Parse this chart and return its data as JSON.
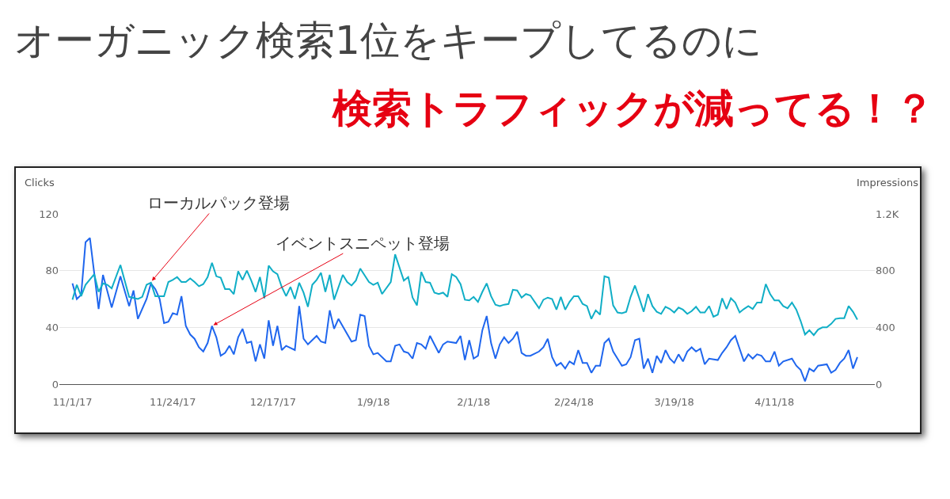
{
  "chart_data": {
    "type": "line",
    "title": "オーガニック検索1位をキープしてるのに",
    "subtitle": "検索トラフィックが減ってる！？",
    "ylabel": "Clicks",
    "y2label": "Impressions",
    "annotations": [
      {
        "text": "ローカルパック登場",
        "x": "2017-11-19",
        "y": 72
      },
      {
        "text": "イベントスニペット登場",
        "x": "2017-12-03",
        "y": 41
      }
    ],
    "xlim": [
      "2017-10-29",
      "2018-05-04"
    ],
    "xticks": [
      {
        "value": "2017-11-01",
        "label": "11/1/17"
      },
      {
        "value": "2017-11-24",
        "label": "11/24/17"
      },
      {
        "value": "2017-12-17",
        "label": "12/17/17"
      },
      {
        "value": "2018-01-09",
        "label": "1/9/18"
      },
      {
        "value": "2018-02-01",
        "label": "2/1/18"
      },
      {
        "value": "2018-02-24",
        "label": "2/24/18"
      },
      {
        "value": "2018-03-19",
        "label": "3/19/18"
      },
      {
        "value": "2018-04-11",
        "label": "4/11/18"
      }
    ],
    "ylim": [
      0,
      120
    ],
    "yticks": [
      0,
      40,
      80,
      120
    ],
    "y2lim": [
      0,
      1200
    ],
    "y2ticks": [
      0,
      400,
      800,
      {
        "value": 1200,
        "label": "1.2K"
      }
    ],
    "grid": "y",
    "marker": "none",
    "line_style": "solid",
    "series": [
      {
        "color": "#10aec6",
        "axis": "y2",
        "x": [
          "2017-11-01",
          "2017-11-02",
          "2017-11-03",
          "2017-11-04",
          "2017-11-06",
          "2017-11-07",
          "2017-11-08",
          "2017-11-09",
          "2017-11-10",
          "2017-11-12",
          "2017-11-14",
          "2017-11-16",
          "2017-11-17",
          "2017-11-18",
          "2017-11-19",
          "2017-11-20",
          "2017-11-22",
          "2017-11-23",
          "2017-11-24",
          "2017-11-25",
          "2017-11-26",
          "2017-11-27",
          "2017-11-28",
          "2017-11-29",
          "2017-11-30",
          "2017-12-01",
          "2017-12-02",
          "2017-12-03",
          "2017-12-04",
          "2017-12-05",
          "2017-12-06",
          "2017-12-07",
          "2017-12-08",
          "2017-12-09",
          "2017-12-10",
          "2017-12-11",
          "2017-12-12",
          "2017-12-13",
          "2017-12-14",
          "2017-12-15",
          "2017-12-16",
          "2017-12-17",
          "2017-12-18",
          "2017-12-19",
          "2017-12-20",
          "2017-12-21",
          "2017-12-22",
          "2017-12-23",
          "2017-12-24",
          "2017-12-25",
          "2017-12-26",
          "2017-12-27",
          "2017-12-28",
          "2017-12-29",
          "2017-12-30",
          "2017-12-31",
          "2018-01-02",
          "2018-01-03",
          "2018-01-04",
          "2018-01-05",
          "2018-01-06",
          "2018-01-08",
          "2018-01-09",
          "2018-01-10",
          "2018-01-11",
          "2018-01-13",
          "2018-01-14",
          "2018-01-16",
          "2018-01-17",
          "2018-01-18",
          "2018-01-19",
          "2018-01-20",
          "2018-01-21",
          "2018-01-22",
          "2018-01-23",
          "2018-01-24",
          "2018-01-25",
          "2018-01-26",
          "2018-01-27",
          "2018-01-28",
          "2018-01-29",
          "2018-01-30",
          "2018-01-31",
          "2018-02-01",
          "2018-02-02",
          "2018-02-03",
          "2018-02-04",
          "2018-02-05",
          "2018-02-06",
          "2018-02-07",
          "2018-02-08",
          "2018-02-09",
          "2018-02-10",
          "2018-02-11",
          "2018-02-12",
          "2018-02-13",
          "2018-02-14",
          "2018-02-15",
          "2018-02-16",
          "2018-02-17",
          "2018-02-18",
          "2018-02-19",
          "2018-02-20",
          "2018-02-21",
          "2018-02-22",
          "2018-02-23",
          "2018-02-24",
          "2018-02-25",
          "2018-02-26",
          "2018-02-27",
          "2018-02-28",
          "2018-03-01",
          "2018-03-02",
          "2018-03-03",
          "2018-03-04",
          "2018-03-05",
          "2018-03-06",
          "2018-03-07",
          "2018-03-08",
          "2018-03-09",
          "2018-03-10",
          "2018-03-11",
          "2018-03-12",
          "2018-03-13",
          "2018-03-14",
          "2018-03-15",
          "2018-03-16",
          "2018-03-17",
          "2018-03-18",
          "2018-03-19",
          "2018-03-20",
          "2018-03-21",
          "2018-03-22",
          "2018-03-23",
          "2018-03-24",
          "2018-03-25",
          "2018-03-26",
          "2018-03-27",
          "2018-03-28",
          "2018-03-29",
          "2018-03-30",
          "2018-03-31",
          "2018-04-01",
          "2018-04-02",
          "2018-04-03",
          "2018-04-04",
          "2018-04-05",
          "2018-04-06",
          "2018-04-07",
          "2018-04-08",
          "2018-04-09",
          "2018-04-10",
          "2018-04-11",
          "2018-04-12",
          "2018-04-13",
          "2018-04-14",
          "2018-04-15",
          "2018-04-16",
          "2018-04-17",
          "2018-04-18",
          "2018-04-19",
          "2018-04-20",
          "2018-04-21",
          "2018-04-22",
          "2018-04-23",
          "2018-04-24",
          "2018-04-25",
          "2018-04-26",
          "2018-04-27",
          "2018-04-28",
          "2018-04-29",
          "2018-04-30"
        ],
        "values": [
          595,
          700,
          620,
          700,
          775,
          650,
          710,
          700,
          675,
          840,
          615,
          600,
          615,
          700,
          715,
          620,
          620,
          720,
          735,
          755,
          720,
          720,
          745,
          720,
          690,
          705,
          755,
          855,
          760,
          750,
          670,
          670,
          635,
          795,
          735,
          800,
          730,
          650,
          755,
          605,
          835,
          795,
          775,
          685,
          620,
          685,
          600,
          715,
          645,
          545,
          700,
          735,
          785,
          650,
          770,
          595,
          770,
          720,
          695,
          730,
          815,
          720,
          700,
          715,
          635,
          720,
          915,
          730,
          755,
          610,
          555,
          790,
          720,
          715,
          645,
          635,
          645,
          615,
          775,
          755,
          705,
          595,
          590,
          615,
          580,
          650,
          710,
          620,
          560,
          550,
          560,
          565,
          665,
          660,
          610,
          635,
          625,
          580,
          535,
          595,
          610,
          600,
          525,
          615,
          525,
          580,
          620,
          620,
          565,
          550,
          460,
          520,
          490,
          760,
          750,
          555,
          505,
          500,
          510,
          615,
          695,
          605,
          510,
          635,
          550,
          510,
          495,
          545,
          530,
          505,
          540,
          525,
          495,
          515,
          545,
          505,
          505,
          550,
          475,
          490,
          605,
          530,
          605,
          575,
          505,
          530,
          550,
          530,
          575,
          575,
          705,
          635,
          590,
          590,
          550,
          535,
          575,
          525,
          445,
          350,
          380,
          345,
          385,
          400,
          400,
          425,
          460,
          465,
          465,
          550,
          510,
          455
        ]
      },
      {
        "color": "#1f66ee",
        "x": [
          "2017-11-01",
          "2017-11-02",
          "2017-11-03",
          "2017-11-04",
          "2017-11-05",
          "2017-11-07",
          "2017-11-08",
          "2017-11-10",
          "2017-11-12",
          "2017-11-14",
          "2017-11-15",
          "2017-11-16",
          "2017-11-18",
          "2017-11-19",
          "2017-11-20",
          "2017-11-21",
          "2017-11-22",
          "2017-11-23",
          "2017-11-24",
          "2017-11-25",
          "2017-11-26",
          "2017-11-27",
          "2017-11-28",
          "2017-11-29",
          "2017-11-30",
          "2017-12-01",
          "2017-12-02",
          "2017-12-03",
          "2017-12-04",
          "2017-12-05",
          "2017-12-06",
          "2017-12-07",
          "2017-12-08",
          "2017-12-09",
          "2017-12-10",
          "2017-12-11",
          "2017-12-12",
          "2017-12-13",
          "2017-12-14",
          "2017-12-15",
          "2017-12-16",
          "2017-12-17",
          "2017-12-18",
          "2017-12-19",
          "2017-12-20",
          "2017-12-22",
          "2017-12-23",
          "2017-12-24",
          "2017-12-25",
          "2017-12-27",
          "2017-12-28",
          "2017-12-29",
          "2017-12-30",
          "2017-12-31",
          "2018-01-01",
          "2018-01-04",
          "2018-01-05",
          "2018-01-06",
          "2018-01-07",
          "2018-01-08",
          "2018-01-09",
          "2018-01-10",
          "2018-01-12",
          "2018-01-13",
          "2018-01-14",
          "2018-01-15",
          "2018-01-16",
          "2018-01-17",
          "2018-01-18",
          "2018-01-19",
          "2018-01-20",
          "2018-01-21",
          "2018-01-22",
          "2018-01-24",
          "2018-01-25",
          "2018-01-26",
          "2018-01-28",
          "2018-01-29",
          "2018-01-30",
          "2018-01-31",
          "2018-02-01",
          "2018-02-02",
          "2018-02-03",
          "2018-02-04",
          "2018-02-05",
          "2018-02-06",
          "2018-02-07",
          "2018-02-08",
          "2018-02-09",
          "2018-02-10",
          "2018-02-11",
          "2018-02-12",
          "2018-02-13",
          "2018-02-14",
          "2018-02-16",
          "2018-02-17",
          "2018-02-18",
          "2018-02-19",
          "2018-02-20",
          "2018-02-21",
          "2018-02-22",
          "2018-02-23",
          "2018-02-24",
          "2018-02-25",
          "2018-02-26",
          "2018-02-27",
          "2018-02-28",
          "2018-03-01",
          "2018-03-02",
          "2018-03-03",
          "2018-03-04",
          "2018-03-05",
          "2018-03-06",
          "2018-03-07",
          "2018-03-08",
          "2018-03-09",
          "2018-03-10",
          "2018-03-11",
          "2018-03-12",
          "2018-03-13",
          "2018-03-14",
          "2018-03-15",
          "2018-03-16",
          "2018-03-17",
          "2018-03-18",
          "2018-03-19",
          "2018-03-20",
          "2018-03-21",
          "2018-03-22",
          "2018-03-23",
          "2018-03-24",
          "2018-03-25",
          "2018-03-26",
          "2018-03-27",
          "2018-03-29",
          "2018-03-30",
          "2018-03-31",
          "2018-04-01",
          "2018-04-02",
          "2018-04-03",
          "2018-04-04",
          "2018-04-05",
          "2018-04-06",
          "2018-04-07",
          "2018-04-08",
          "2018-04-09",
          "2018-04-10",
          "2018-04-11",
          "2018-04-12",
          "2018-04-13",
          "2018-04-15",
          "2018-04-16",
          "2018-04-17",
          "2018-04-18",
          "2018-04-19",
          "2018-04-20",
          "2018-04-21",
          "2018-04-23",
          "2018-04-24",
          "2018-04-25",
          "2018-04-26",
          "2018-04-27",
          "2018-04-28",
          "2018-04-29",
          "2018-04-30"
        ],
        "values": [
          71,
          60,
          63,
          100,
          103,
          53,
          77,
          54,
          76,
          55,
          66,
          46,
          60,
          71,
          67,
          60,
          43,
          44,
          50,
          49,
          62,
          41,
          35,
          32,
          26,
          23,
          29,
          41,
          33,
          20,
          22,
          27,
          21,
          33,
          39,
          29,
          30,
          16,
          28,
          18,
          45,
          27,
          41,
          24,
          27,
          24,
          55,
          32,
          28,
          34,
          30,
          29,
          52,
          39,
          46,
          30,
          31,
          49,
          48,
          27,
          21,
          22,
          16,
          16,
          27,
          28,
          23,
          22,
          18,
          29,
          28,
          25,
          34,
          22,
          28,
          30,
          29,
          34,
          17,
          31,
          18,
          20,
          38,
          48,
          29,
          18,
          28,
          33,
          29,
          32,
          37,
          22,
          20,
          20,
          23,
          26,
          32,
          19,
          13,
          15,
          11,
          16,
          14,
          24,
          15,
          15,
          8,
          13,
          13,
          29,
          32,
          23,
          18,
          13,
          14,
          19,
          31,
          32,
          11,
          18,
          8,
          20,
          15,
          24,
          18,
          15,
          21,
          16,
          23,
          26,
          23,
          25,
          14,
          18,
          17,
          22,
          26,
          31,
          34,
          25,
          16,
          21,
          18,
          21,
          20,
          16,
          16,
          23,
          13,
          16,
          18,
          13,
          10,
          2,
          11,
          9,
          13,
          14,
          8,
          10,
          15,
          18,
          24,
          11,
          19
        ]
      }
    ]
  }
}
